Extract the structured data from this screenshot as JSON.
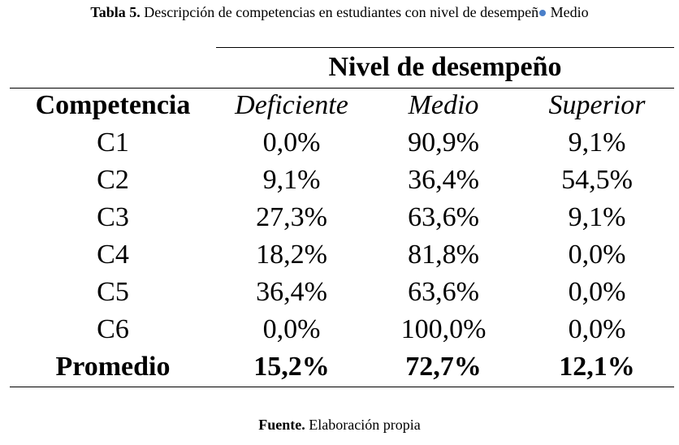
{
  "caption": {
    "label": "Tabla 5.",
    "text_before_mark": " Descripción de competencias en estudiantes con nivel de desempeñ",
    "text_after_mark": " Medio"
  },
  "table": {
    "group_header": "Nivel de desempeño",
    "columns": [
      "Competencia",
      "Deficiente",
      "Medio",
      "Superior"
    ],
    "rows": [
      [
        "C1",
        "0,0%",
        "90,9%",
        "9,1%"
      ],
      [
        "C2",
        "9,1%",
        "36,4%",
        "54,5%"
      ],
      [
        "C3",
        "27,3%",
        "63,6%",
        "9,1%"
      ],
      [
        "C4",
        "18,2%",
        "81,8%",
        "0,0%"
      ],
      [
        "C5",
        "36,4%",
        "63,6%",
        "0,0%"
      ],
      [
        "C6",
        "0,0%",
        "100,0%",
        "0,0%"
      ]
    ],
    "total": [
      "Promedio",
      "15,2%",
      "72,7%",
      "12,1%"
    ]
  },
  "footer": {
    "label": "Fuente.",
    "text": " Elaboración propia"
  },
  "colors": {
    "text": "#000000",
    "caption_mark": "#4a7fc9"
  }
}
